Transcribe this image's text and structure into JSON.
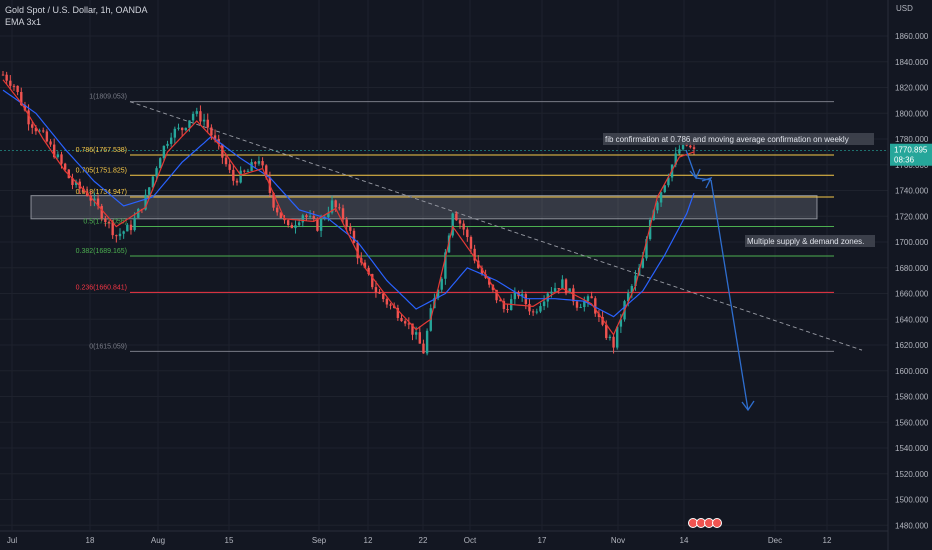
{
  "header": {
    "symbol": "Gold Spot / U.S. Dollar, 1h, OANDA",
    "indicator": "EMA 3x1",
    "currency": "USD"
  },
  "price_tag": {
    "price": "1770.895",
    "countdown": "08:36"
  },
  "colors": {
    "background": "#131722",
    "up": "#26a69a",
    "down": "#ef5350",
    "ema_red": "#e53935",
    "ema_blue": "#2962ff",
    "fib_gray": "#787b86",
    "fib_yellow": "#f7c948",
    "fib_green": "#4caf50",
    "fib_red": "#f23645",
    "arrow": "#2e6ecf",
    "zone": "#b2b5be"
  },
  "chart_data": {
    "type": "candlestick",
    "title": "Gold Spot / U.S. Dollar, 1h, OANDA",
    "y_axis": {
      "ylim": [
        1480,
        1870
      ],
      "ticks": [
        1860,
        1840,
        1820,
        1800,
        1780,
        1760,
        1740,
        1720,
        1700,
        1680,
        1660,
        1640,
        1620,
        1600,
        1580,
        1560,
        1540,
        1520,
        1500,
        1480
      ],
      "tick_labels": [
        "1860.000",
        "1840.000",
        "1820.000",
        "1800.000",
        "1780.000",
        "1760.000",
        "1740.000",
        "1720.000",
        "1700.000",
        "1680.000",
        "1660.000",
        "1640.000",
        "1620.000",
        "1600.000",
        "1580.000",
        "1560.000",
        "1540.000",
        "1520.000",
        "1500.000",
        "1480.000"
      ]
    },
    "x_axis": {
      "labels": [
        "Jul",
        "18",
        "Aug",
        "15",
        "Sep",
        "12",
        "22",
        "Oct",
        "17",
        "Nov",
        "14",
        "Dec",
        "12"
      ]
    },
    "price_path_anchors": [
      [
        1,
        1830
      ],
      [
        4,
        1822
      ],
      [
        8,
        1795
      ],
      [
        12,
        1782
      ],
      [
        16,
        1765
      ],
      [
        20,
        1745
      ],
      [
        24,
        1738
      ],
      [
        28,
        1722
      ],
      [
        32,
        1705
      ],
      [
        36,
        1712
      ],
      [
        40,
        1734
      ],
      [
        44,
        1768
      ],
      [
        47,
        1785
      ],
      [
        50,
        1788
      ],
      [
        53,
        1800
      ],
      [
        56,
        1795
      ],
      [
        60,
        1772
      ],
      [
        64,
        1748
      ],
      [
        68,
        1755
      ],
      [
        71,
        1765
      ],
      [
        75,
        1730
      ],
      [
        79,
        1710
      ],
      [
        83,
        1722
      ],
      [
        87,
        1712
      ],
      [
        91,
        1730
      ],
      [
        95,
        1715
      ],
      [
        99,
        1682
      ],
      [
        103,
        1662
      ],
      [
        107,
        1650
      ],
      [
        111,
        1640
      ],
      [
        114,
        1626
      ],
      [
        116,
        1615
      ],
      [
        118,
        1645
      ],
      [
        121,
        1675
      ],
      [
        124,
        1725
      ],
      [
        127,
        1710
      ],
      [
        131,
        1680
      ],
      [
        134,
        1665
      ],
      [
        138,
        1648
      ],
      [
        142,
        1660
      ],
      [
        146,
        1645
      ],
      [
        150,
        1662
      ],
      [
        154,
        1668
      ],
      [
        158,
        1652
      ],
      [
        162,
        1655
      ],
      [
        165,
        1632
      ],
      [
        168,
        1620
      ],
      [
        171,
        1652
      ],
      [
        174,
        1672
      ],
      [
        176,
        1685
      ],
      [
        178,
        1720
      ],
      [
        181,
        1740
      ],
      [
        184,
        1760
      ],
      [
        186,
        1772
      ],
      [
        188,
        1775
      ],
      [
        190,
        1770
      ]
    ],
    "ema_red_anchors": [
      [
        1,
        1826
      ],
      [
        6,
        1808
      ],
      [
        12,
        1780
      ],
      [
        18,
        1755
      ],
      [
        24,
        1738
      ],
      [
        32,
        1712
      ],
      [
        40,
        1727
      ],
      [
        46,
        1770
      ],
      [
        54,
        1794
      ],
      [
        60,
        1776
      ],
      [
        66,
        1752
      ],
      [
        72,
        1757
      ],
      [
        78,
        1718
      ],
      [
        86,
        1716
      ],
      [
        92,
        1726
      ],
      [
        100,
        1680
      ],
      [
        108,
        1650
      ],
      [
        114,
        1632
      ],
      [
        118,
        1640
      ],
      [
        124,
        1712
      ],
      [
        130,
        1688
      ],
      [
        138,
        1652
      ],
      [
        146,
        1650
      ],
      [
        154,
        1664
      ],
      [
        162,
        1652
      ],
      [
        168,
        1628
      ],
      [
        174,
        1666
      ],
      [
        180,
        1735
      ],
      [
        186,
        1766
      ],
      [
        190,
        1770
      ]
    ],
    "ema_blue_anchors": [
      [
        1,
        1818
      ],
      [
        10,
        1800
      ],
      [
        18,
        1772
      ],
      [
        26,
        1747
      ],
      [
        34,
        1728
      ],
      [
        42,
        1735
      ],
      [
        50,
        1762
      ],
      [
        58,
        1782
      ],
      [
        66,
        1765
      ],
      [
        74,
        1750
      ],
      [
        82,
        1725
      ],
      [
        90,
        1718
      ],
      [
        98,
        1700
      ],
      [
        106,
        1670
      ],
      [
        114,
        1648
      ],
      [
        122,
        1660
      ],
      [
        128,
        1680
      ],
      [
        136,
        1670
      ],
      [
        144,
        1656
      ],
      [
        152,
        1656
      ],
      [
        160,
        1654
      ],
      [
        168,
        1642
      ],
      [
        176,
        1662
      ],
      [
        182,
        1690
      ],
      [
        188,
        1722
      ],
      [
        190,
        1738
      ]
    ],
    "fibonacci": [
      {
        "level": "1",
        "price": 1809.053,
        "label": "1(1809.053)",
        "color": "#787b86"
      },
      {
        "level": "0.786",
        "price": 1767.538,
        "label": "0.786(1767.538)",
        "color": "#f7c948"
      },
      {
        "level": "0.705",
        "price": 1751.825,
        "label": "0.705(1751.825)",
        "color": "#f7c948"
      },
      {
        "level": "0.618",
        "price": 1734.947,
        "label": "0.618(1734.947)",
        "color": "#f7c948"
      },
      {
        "level": "0.5",
        "price": 1712.056,
        "label": "0.5(1712.056)",
        "color": "#4caf50"
      },
      {
        "level": "0.382",
        "price": 1689.165,
        "label": "0.382(1689.165)",
        "color": "#4caf50"
      },
      {
        "level": "0.236",
        "price": 1660.841,
        "label": "0.236(1660.841)",
        "color": "#f23645"
      },
      {
        "level": "0",
        "price": 1615.059,
        "label": "0(1615.059)",
        "color": "#787b86"
      }
    ],
    "zone": {
      "top": 1736,
      "bottom": 1718
    },
    "trendline": {
      "start": [
        1759,
        1809
      ],
      "end": [
        10455,
        1616
      ]
    },
    "annotations": [
      {
        "text": "fib confirmation at 0.786 and moving average confirmation on weekly"
      },
      {
        "text": "Multiple supply & demand zones."
      }
    ]
  }
}
